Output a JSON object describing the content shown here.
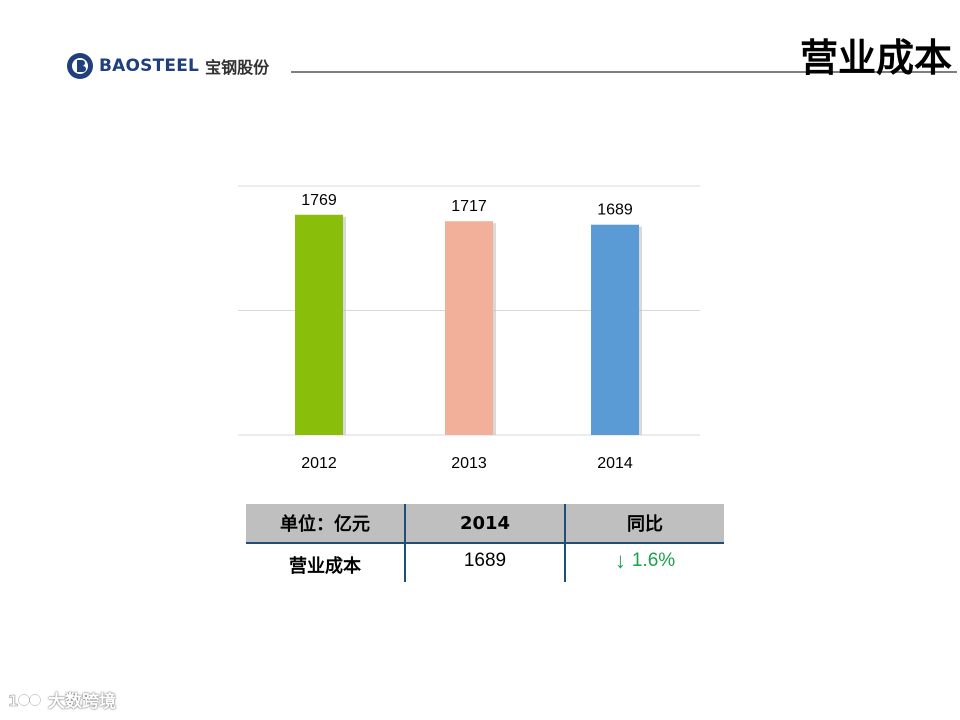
{
  "header": {
    "logo_en": "BAOSTEEL",
    "logo_cn": "宝钢股份",
    "title": "营业成本"
  },
  "colors": {
    "bar_2012": "#89bf0b",
    "bar_2013": "#f2b09b",
    "bar_2014": "#5b9bd5",
    "header_line": "#7f7f7f",
    "table_rule": "#1f4e79",
    "up_down_green": "#1aa14a"
  },
  "chart_data": {
    "type": "bar",
    "categories": [
      "2012",
      "2013",
      "2014"
    ],
    "values": [
      1769,
      1717,
      1689
    ],
    "data_labels": [
      "1769",
      "1717",
      "1689"
    ],
    "bar_colors": [
      "#89bf0b",
      "#f2b09b",
      "#5b9bd5"
    ],
    "ylim": [
      0,
      2000
    ],
    "grid": true,
    "title": "",
    "xlabel": "",
    "ylabel": ""
  },
  "table": {
    "headers": [
      "单位：亿元",
      "2014",
      "同比"
    ],
    "row": {
      "label": "营业成本",
      "value": "1689",
      "change_icon": "down-arrow",
      "change_arrow": "↓",
      "change": "1.6%"
    }
  },
  "watermark": {
    "text": "大数跨境"
  }
}
